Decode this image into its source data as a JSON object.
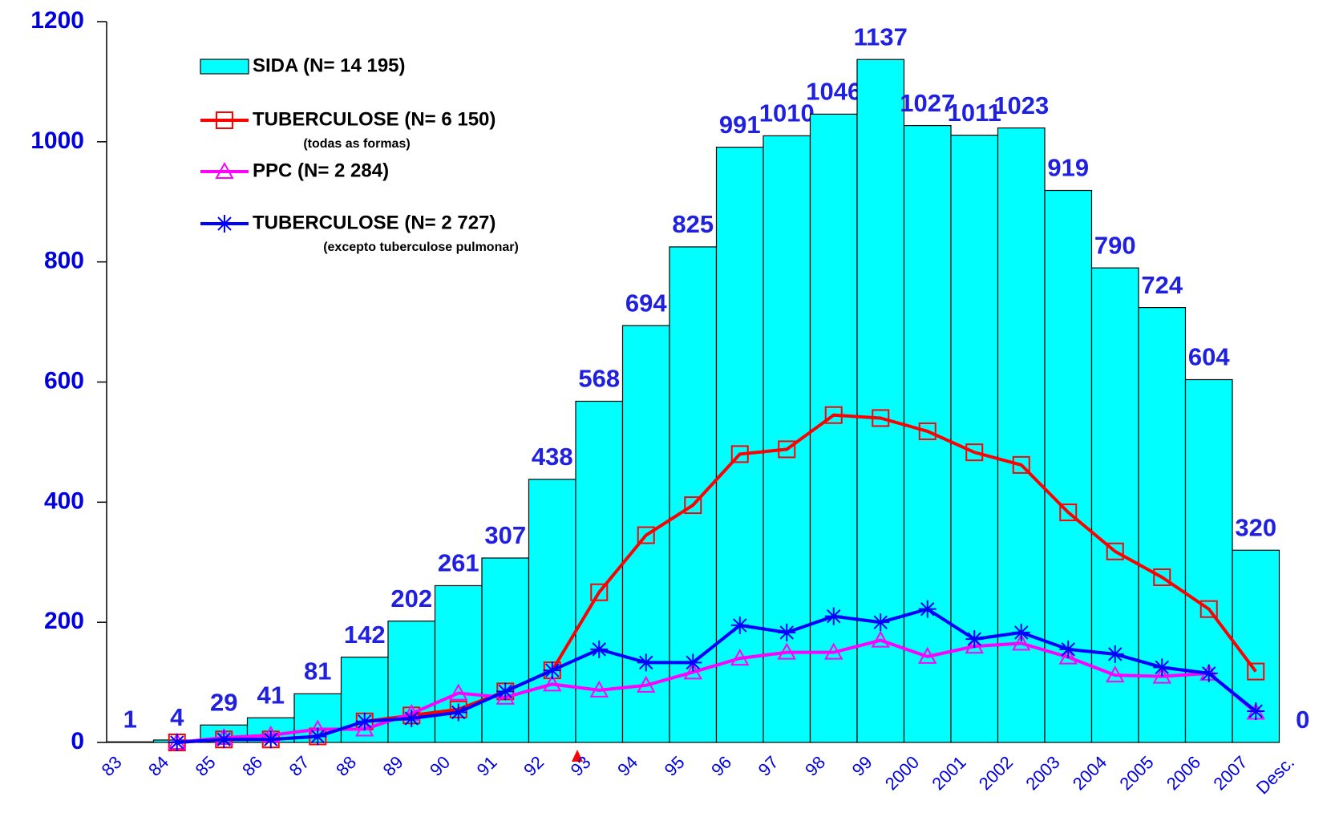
{
  "chart_data": {
    "type": "bar",
    "categories": [
      "83",
      "84",
      "85",
      "86",
      "87",
      "88",
      "89",
      "90",
      "91",
      "92",
      "93",
      "94",
      "95",
      "96",
      "97",
      "98",
      "99",
      "2000",
      "2001",
      "2002",
      "2003",
      "2004",
      "2005",
      "2006",
      "2007",
      "Desc."
    ],
    "ylim": [
      0,
      1200
    ],
    "yticks": [
      0,
      200,
      400,
      600,
      800,
      1000,
      1200
    ],
    "legend": "upper left",
    "series": [
      {
        "name": "SIDA (N= 14 195)",
        "type": "bar",
        "color": "#00ffff",
        "values": [
          1,
          4,
          29,
          41,
          81,
          142,
          202,
          261,
          307,
          438,
          568,
          694,
          825,
          991,
          1010,
          1046,
          1137,
          1027,
          1011,
          1023,
          919,
          790,
          724,
          604,
          320,
          0
        ]
      },
      {
        "name": "TUBERCULOSE (N= 6 150)",
        "note": "(todas as formas)",
        "type": "line",
        "color": "#ff0000",
        "marker": "square",
        "values": [
          null,
          0,
          5,
          5,
          10,
          35,
          45,
          55,
          85,
          120,
          250,
          345,
          395,
          480,
          488,
          545,
          540,
          518,
          483,
          462,
          383,
          318,
          275,
          222,
          118,
          null
        ]
      },
      {
        "name": "PPC (N= 2 284)",
        "type": "line",
        "color": "#ff00ff",
        "marker": "triangle",
        "values": [
          null,
          0,
          8,
          12,
          22,
          22,
          48,
          82,
          75,
          97,
          87,
          95,
          117,
          140,
          150,
          150,
          170,
          143,
          160,
          165,
          142,
          112,
          110,
          115,
          50,
          null
        ]
      },
      {
        "name": "TUBERCULOSE (N= 2 727)",
        "note": "(excepto tuberculose pulmonar)",
        "type": "line",
        "color": "#0000ff",
        "marker": "star",
        "values": [
          null,
          0,
          5,
          5,
          10,
          35,
          40,
          50,
          85,
          120,
          155,
          133,
          133,
          195,
          183,
          210,
          200,
          222,
          172,
          183,
          155,
          147,
          125,
          115,
          52,
          null
        ]
      }
    ]
  }
}
